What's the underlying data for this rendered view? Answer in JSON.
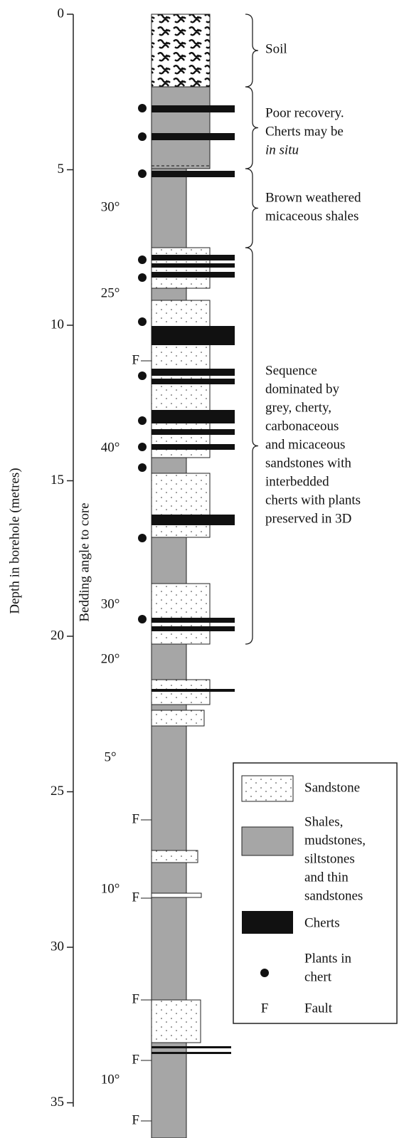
{
  "axis": {
    "title": "Depth in borehole (metres)",
    "ticks": [
      0,
      5,
      10,
      15,
      20,
      25,
      30,
      35
    ]
  },
  "bedding": {
    "title": "Bedding angle to core",
    "angles": [
      "30°",
      "25°",
      "40°",
      "30°",
      "20°",
      "5°",
      "10°",
      "10°"
    ]
  },
  "faults": [
    "F",
    "F",
    "F",
    "F",
    "F",
    "F"
  ],
  "annotations": [
    {
      "lines": [
        "Soil"
      ]
    },
    {
      "lines": [
        "Poor recovery.",
        "Cherts may be",
        "in situ"
      ]
    },
    {
      "lines": [
        "Brown weathered",
        "micaceous shales"
      ]
    },
    {
      "lines": [
        "Sequence",
        "dominated by",
        "grey, cherty,",
        "carbonaceous",
        "and micaceous",
        "sandstones with",
        "interbedded",
        "cherts with plants",
        "preserved in 3D"
      ]
    }
  ],
  "legend": [
    {
      "lines": [
        "Sandstone"
      ]
    },
    {
      "lines": [
        "Shales,",
        "mudstones,",
        "siltstones",
        "and thin",
        "sandstones"
      ]
    },
    {
      "lines": [
        "Cherts"
      ]
    },
    {
      "lines": [
        "Plants in",
        "chert"
      ]
    },
    {
      "symbol": "F",
      "lines": [
        "Fault"
      ]
    }
  ]
}
